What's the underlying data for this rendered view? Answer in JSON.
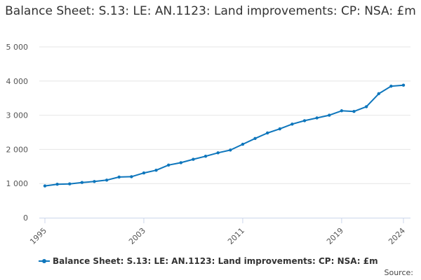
{
  "chart_data": {
    "type": "line",
    "title": "Balance Sheet: S.13: LE: AN.1123: Land improvements: CP: NSA: £m",
    "xlabel": "",
    "ylabel": "",
    "x": [
      1995,
      1996,
      1997,
      1998,
      1999,
      2000,
      2001,
      2002,
      2003,
      2004,
      2005,
      2006,
      2007,
      2008,
      2009,
      2010,
      2011,
      2012,
      2013,
      2014,
      2015,
      2016,
      2017,
      2018,
      2019,
      2020,
      2021,
      2022,
      2023,
      2024
    ],
    "x_ticks": [
      "1995",
      "2003",
      "2011",
      "2019",
      "2024"
    ],
    "y_ticks": [
      "0",
      "1 000",
      "2 000",
      "3 000",
      "4 000",
      "5 000"
    ],
    "ylim": [
      0,
      5000
    ],
    "series": [
      {
        "name": "Balance Sheet: S.13: LE: AN.1123: Land improvements: CP: NSA: £m",
        "color": "#0e76bc",
        "values": [
          930,
          980,
          990,
          1030,
          1060,
          1100,
          1190,
          1200,
          1310,
          1390,
          1540,
          1610,
          1710,
          1800,
          1900,
          1980,
          2150,
          2320,
          2480,
          2600,
          2740,
          2840,
          2920,
          3000,
          3130,
          3110,
          3250,
          3630,
          3850,
          3880
        ]
      }
    ],
    "source_label": "Source:"
  }
}
